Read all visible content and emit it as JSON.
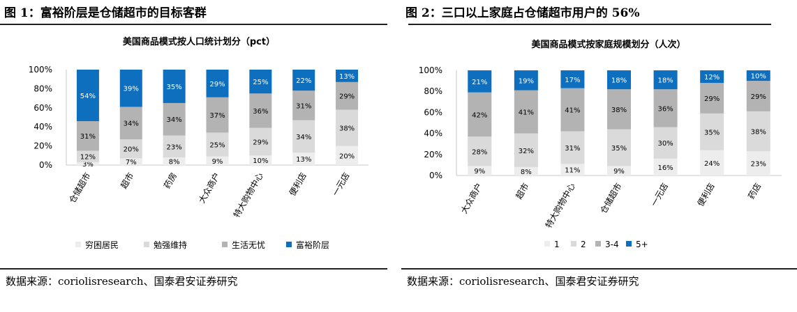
{
  "figure1": {
    "title": "图 1：富裕阶层是仓储超市的目标客群",
    "source": "数据来源：coriolisresearch、国泰君安证券研究"
  },
  "figure2": {
    "title": "图 2：三口以上家庭占仓储超市用户的 56%",
    "source": "数据来源：coriolisresearch、国泰君安证券研究"
  },
  "colors": {
    "series": [
      "#ededed",
      "#dadada",
      "#b3b3b3",
      "#0f6fbf"
    ],
    "axis": "#c8c8c8",
    "rule": "#1f1f1f"
  },
  "chart_data": [
    {
      "type": "bar",
      "stacked": true,
      "title": "美国商品模式按人口统计划分（pct）",
      "categories": [
        "仓储超市",
        "超市",
        "药房",
        "大众商户",
        "特大购物中心",
        "便利店",
        "一元店"
      ],
      "series": [
        {
          "name": "穷困居民",
          "values": [
            3,
            7,
            8,
            9,
            10,
            13,
            20
          ]
        },
        {
          "name": "勉强维持",
          "values": [
            12,
            20,
            23,
            25,
            29,
            34,
            38
          ]
        },
        {
          "name": "生活无忧",
          "values": [
            31,
            34,
            34,
            37,
            36,
            31,
            29
          ]
        },
        {
          "name": "富裕阶层",
          "values": [
            54,
            39,
            35,
            29,
            25,
            22,
            13
          ]
        }
      ],
      "ylim": [
        0,
        100
      ],
      "yticks": [
        "0%",
        "20%",
        "40%",
        "60%",
        "80%",
        "100%"
      ],
      "xlabel": "",
      "ylabel": "",
      "legend": "bottom"
    },
    {
      "type": "bar",
      "stacked": true,
      "title": "美国商品模式按家庭规模划分（人次）",
      "categories": [
        "大众商户",
        "超市",
        "特大购物中心",
        "仓储超市",
        "一元店",
        "便利店",
        "药店"
      ],
      "series": [
        {
          "name": "1",
          "values": [
            9,
            8,
            11,
            9,
            16,
            24,
            23
          ]
        },
        {
          "name": "2",
          "values": [
            28,
            32,
            31,
            35,
            30,
            35,
            38
          ]
        },
        {
          "name": "3-4",
          "values": [
            42,
            41,
            41,
            38,
            36,
            29,
            29
          ]
        },
        {
          "name": "5+",
          "values": [
            21,
            19,
            17,
            18,
            18,
            12,
            10
          ]
        }
      ],
      "ylim": [
        0,
        100
      ],
      "yticks": [
        "0%",
        "20%",
        "40%",
        "60%",
        "80%",
        "100%"
      ],
      "xlabel": "",
      "ylabel": "",
      "legend": "bottom"
    }
  ]
}
